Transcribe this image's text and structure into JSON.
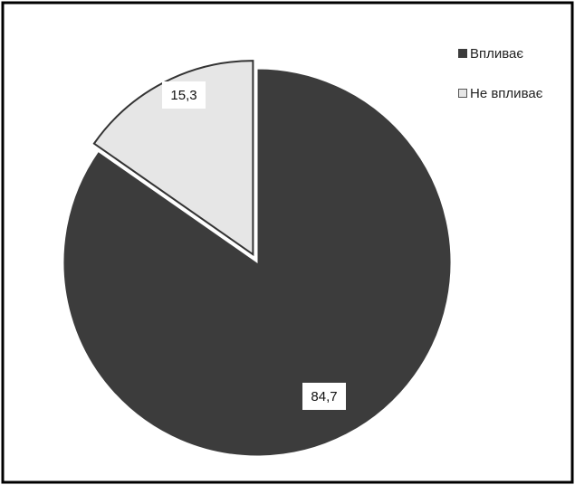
{
  "chart_data": {
    "type": "pie",
    "categories": [
      "Впливає",
      "Не впливає"
    ],
    "values": [
      84.7,
      15.3
    ],
    "value_labels": [
      "84,7",
      "15,3"
    ],
    "colors": [
      "#3c3c3c",
      "#e6e6e6"
    ],
    "exploded": [
      false,
      true
    ],
    "start_angle_deg": 0,
    "direction": "clockwise",
    "legend": "top-right",
    "title": ""
  }
}
